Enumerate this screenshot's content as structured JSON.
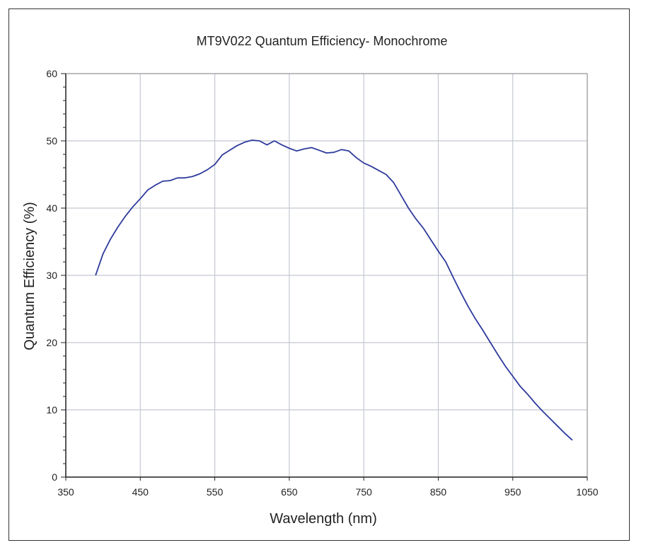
{
  "chart_data": {
    "type": "line",
    "title": "MT9V022 Quantum Efficiency- Monochrome",
    "xlabel": "Wavelength (nm)",
    "ylabel": "Quantum Efficiency (%)",
    "xlim": [
      350,
      1050
    ],
    "ylim": [
      0,
      60
    ],
    "xticks": [
      350,
      450,
      550,
      650,
      750,
      850,
      950,
      1050
    ],
    "yticks": [
      0,
      10,
      20,
      30,
      40,
      50,
      60
    ],
    "grid": true,
    "line_color": "#2e3a9c",
    "series": [
      {
        "name": "Monochrome",
        "x": [
          390,
          400,
          410,
          420,
          430,
          440,
          450,
          460,
          470,
          480,
          490,
          500,
          510,
          520,
          530,
          540,
          550,
          560,
          570,
          580,
          590,
          600,
          610,
          620,
          630,
          640,
          650,
          660,
          670,
          680,
          690,
          700,
          710,
          720,
          730,
          740,
          750,
          760,
          770,
          780,
          790,
          800,
          810,
          820,
          830,
          840,
          850,
          860,
          870,
          880,
          890,
          900,
          910,
          920,
          930,
          940,
          950,
          960,
          970,
          980,
          990,
          1000,
          1010,
          1020,
          1030
        ],
        "y": [
          30,
          33.2,
          35.4,
          37.2,
          38.8,
          40.2,
          41.4,
          42.7,
          43.4,
          44.0,
          44.1,
          44.5,
          44.5,
          44.7,
          45.1,
          45.7,
          46.5,
          47.9,
          48.6,
          49.3,
          49.8,
          50.1,
          50.0,
          49.4,
          50.0,
          49.4,
          48.9,
          48.5,
          48.8,
          49.0,
          48.6,
          48.2,
          48.3,
          48.7,
          48.5,
          47.5,
          46.7,
          46.2,
          45.6,
          45.0,
          43.8,
          41.9,
          40.0,
          38.4,
          37.0,
          35.3,
          33.6,
          32.0,
          29.7,
          27.5,
          25.4,
          23.5,
          21.8,
          20.0,
          18.2,
          16.5,
          15.0,
          13.5,
          12.3,
          11.0,
          9.8,
          8.7,
          7.6,
          6.5,
          5.5
        ]
      }
    ]
  }
}
